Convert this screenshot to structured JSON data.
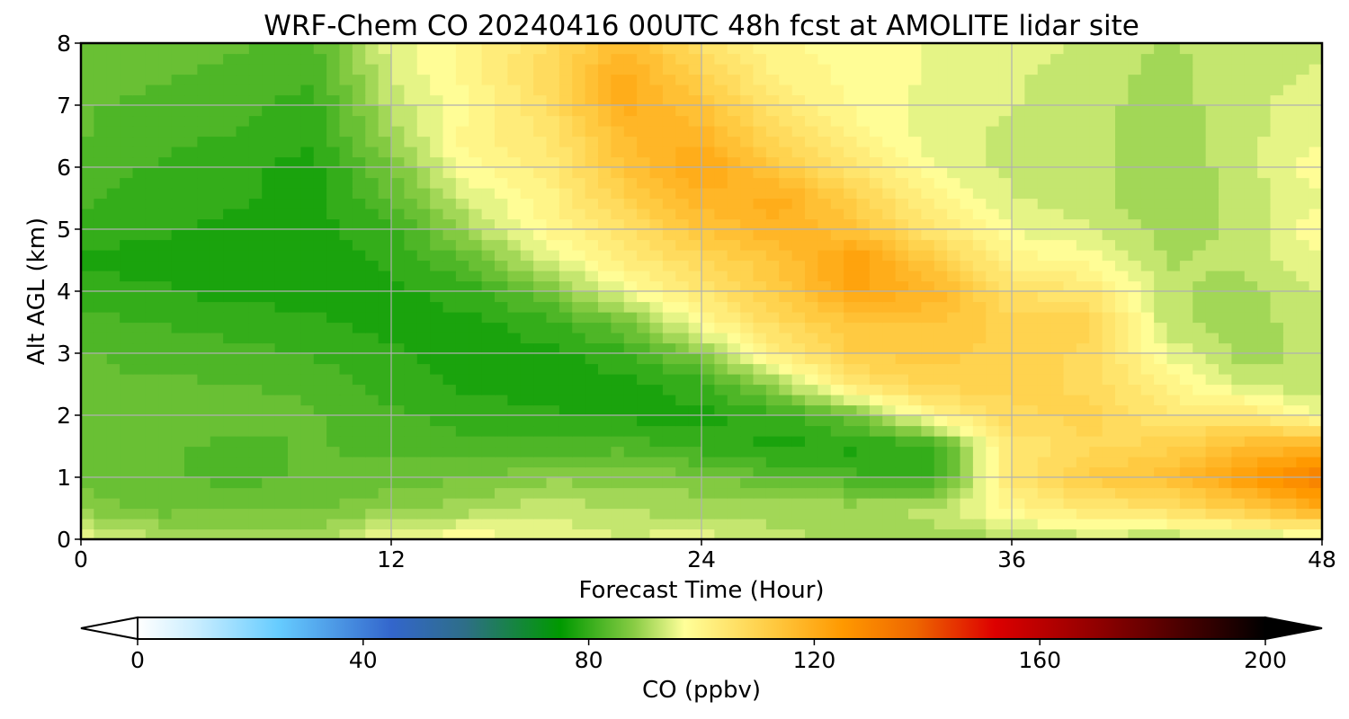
{
  "chart_data": {
    "type": "heatmap",
    "title": "WRF-Chem CO  20240416 00UTC 48h fcst at AMOLITE lidar site",
    "xlabel": "Forecast Time (Hour)",
    "ylabel": "Alt AGL (km)",
    "xlim": [
      0,
      48
    ],
    "ylim": [
      0,
      8
    ],
    "xticks": [
      0,
      12,
      24,
      36,
      48
    ],
    "yticks": [
      0,
      1,
      2,
      3,
      4,
      5,
      6,
      7,
      8
    ],
    "grid": true,
    "x_hours": [
      0,
      3,
      6,
      9,
      12,
      15,
      18,
      21,
      24,
      27,
      30,
      33,
      36,
      39,
      42,
      45,
      48
    ],
    "y_km": [
      0,
      0.5,
      1,
      1.5,
      2,
      2.5,
      3,
      3.5,
      4,
      4.5,
      5,
      5.5,
      6,
      6.5,
      7,
      7.5,
      8
    ],
    "values_ppbv": [
      [
        96,
        92,
        90,
        90,
        97,
        98,
        96,
        94,
        95,
        92,
        90,
        90,
        90,
        92,
        91,
        92,
        93
      ],
      [
        88,
        85,
        86,
        86,
        88,
        90,
        93,
        91,
        90,
        90,
        90,
        92,
        100,
        104,
        106,
        112,
        120
      ],
      [
        85,
        84,
        83,
        84,
        85,
        86,
        88,
        88,
        87,
        84,
        82,
        80,
        104,
        112,
        115,
        124,
        132
      ],
      [
        86,
        84,
        83,
        84,
        83,
        82,
        82,
        83,
        80,
        78,
        78,
        80,
        104,
        108,
        110,
        116,
        118
      ],
      [
        86,
        86,
        85,
        84,
        82,
        80,
        79,
        78,
        78,
        80,
        86,
        100,
        108,
        110,
        104,
        104,
        96
      ],
      [
        84,
        84,
        84,
        83,
        80,
        78,
        78,
        78,
        80,
        90,
        104,
        110,
        110,
        108,
        100,
        93,
        92
      ],
      [
        84,
        83,
        82,
        81,
        79,
        78,
        78,
        80,
        88,
        102,
        112,
        112,
        110,
        108,
        96,
        90,
        92
      ],
      [
        82,
        81,
        80,
        79,
        78,
        78,
        80,
        86,
        98,
        108,
        114,
        114,
        110,
        110,
        92,
        90,
        93
      ],
      [
        80,
        79,
        78,
        78,
        78,
        80,
        86,
        96,
        104,
        112,
        122,
        118,
        106,
        104,
        92,
        90,
        94
      ],
      [
        78,
        78,
        78,
        78,
        79,
        84,
        94,
        102,
        108,
        114,
        124,
        112,
        100,
        98,
        91,
        92,
        96
      ],
      [
        80,
        79,
        78,
        78,
        80,
        90,
        99,
        106,
        114,
        118,
        114,
        104,
        96,
        94,
        90,
        92,
        98
      ],
      [
        82,
        80,
        79,
        78,
        84,
        94,
        100,
        110,
        118,
        120,
        110,
        100,
        94,
        92,
        89,
        92,
        96
      ],
      [
        82,
        81,
        79,
        78,
        86,
        98,
        102,
        114,
        122,
        112,
        104,
        96,
        93,
        92,
        89,
        93,
        98
      ],
      [
        84,
        82,
        81,
        79,
        90,
        100,
        104,
        116,
        118,
        108,
        100,
        95,
        93,
        92,
        89,
        93,
        96
      ],
      [
        84,
        83,
        82,
        80,
        92,
        98,
        106,
        120,
        114,
        104,
        98,
        95,
        94,
        92,
        90,
        93,
        95
      ],
      [
        85,
        84,
        83,
        82,
        94,
        100,
        108,
        120,
        110,
        100,
        98,
        96,
        94,
        93,
        90,
        93,
        94
      ],
      [
        85,
        85,
        84,
        83,
        95,
        100,
        106,
        116,
        106,
        99,
        98,
        96,
        95,
        93,
        91,
        93,
        93
      ]
    ],
    "colorbar": {
      "label": "CO  (ppbv)",
      "min": 0,
      "max": 200,
      "ticks": [
        0,
        40,
        80,
        120,
        160,
        200
      ],
      "extend": "both",
      "stops": [
        {
          "value": 0,
          "color": "#ffffff"
        },
        {
          "value": 10,
          "color": "#cceeff"
        },
        {
          "value": 25,
          "color": "#66ccff"
        },
        {
          "value": 45,
          "color": "#3366cc"
        },
        {
          "value": 58,
          "color": "#2e6e88"
        },
        {
          "value": 75,
          "color": "#009900"
        },
        {
          "value": 88,
          "color": "#88cc44"
        },
        {
          "value": 97,
          "color": "#ffff99"
        },
        {
          "value": 112,
          "color": "#ffcc44"
        },
        {
          "value": 125,
          "color": "#ff9900"
        },
        {
          "value": 138,
          "color": "#ee6600"
        },
        {
          "value": 152,
          "color": "#dd0000"
        },
        {
          "value": 172,
          "color": "#880000"
        },
        {
          "value": 190,
          "color": "#330000"
        },
        {
          "value": 200,
          "color": "#000000"
        }
      ]
    }
  }
}
